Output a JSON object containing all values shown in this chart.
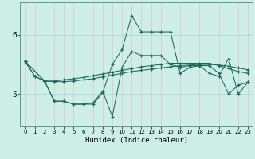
{
  "xlabel": "Humidex (Indice chaleur)",
  "bg_color": "#ceeee8",
  "grid_color": "#a0d8d0",
  "line_color": "#1a6b5a",
  "xlim": [
    -0.5,
    23.5
  ],
  "ylim": [
    4.45,
    6.55
  ],
  "yticks": [
    5,
    6
  ],
  "xticks": [
    0,
    1,
    2,
    3,
    4,
    5,
    6,
    7,
    8,
    9,
    10,
    11,
    12,
    13,
    14,
    15,
    16,
    17,
    18,
    19,
    20,
    21,
    22,
    23
  ],
  "series": [
    {
      "x": [
        0,
        1,
        2,
        3,
        4,
        5,
        6,
        7,
        8,
        9,
        10,
        11,
        12,
        13,
        14,
        15,
        16,
        17,
        18,
        19,
        20,
        21,
        22,
        23
      ],
      "y": [
        5.55,
        5.3,
        5.22,
        4.88,
        4.88,
        4.83,
        4.83,
        4.83,
        5.02,
        5.5,
        5.75,
        6.32,
        6.05,
        6.05,
        6.05,
        6.05,
        5.35,
        5.45,
        5.48,
        5.48,
        5.35,
        5.0,
        5.15,
        5.2
      ]
    },
    {
      "x": [
        0,
        1,
        2,
        3,
        4,
        5,
        6,
        7,
        8,
        9,
        10,
        11,
        12,
        13,
        14,
        15,
        16,
        17,
        18,
        19,
        20,
        21,
        22,
        23
      ],
      "y": [
        5.55,
        5.3,
        5.22,
        4.88,
        4.88,
        4.83,
        4.83,
        4.85,
        5.05,
        4.62,
        5.45,
        5.72,
        5.65,
        5.65,
        5.65,
        5.5,
        5.45,
        5.48,
        5.48,
        5.35,
        5.3,
        5.6,
        5.0,
        5.2
      ]
    },
    {
      "x": [
        0,
        2,
        3,
        4,
        5,
        6,
        7,
        8,
        9,
        10,
        11,
        12,
        13,
        14,
        15,
        16,
        17,
        18,
        19,
        20,
        21,
        22,
        23
      ],
      "y": [
        5.55,
        5.22,
        5.22,
        5.24,
        5.26,
        5.28,
        5.31,
        5.34,
        5.37,
        5.4,
        5.43,
        5.46,
        5.48,
        5.5,
        5.52,
        5.52,
        5.52,
        5.52,
        5.52,
        5.48,
        5.43,
        5.38,
        5.35
      ]
    },
    {
      "x": [
        0,
        2,
        3,
        4,
        5,
        6,
        7,
        8,
        9,
        10,
        11,
        12,
        13,
        14,
        15,
        16,
        17,
        18,
        19,
        20,
        21,
        22,
        23
      ],
      "y": [
        5.55,
        5.22,
        5.21,
        5.21,
        5.22,
        5.24,
        5.26,
        5.29,
        5.32,
        5.35,
        5.38,
        5.4,
        5.42,
        5.44,
        5.46,
        5.48,
        5.49,
        5.5,
        5.5,
        5.49,
        5.47,
        5.44,
        5.41
      ]
    }
  ]
}
